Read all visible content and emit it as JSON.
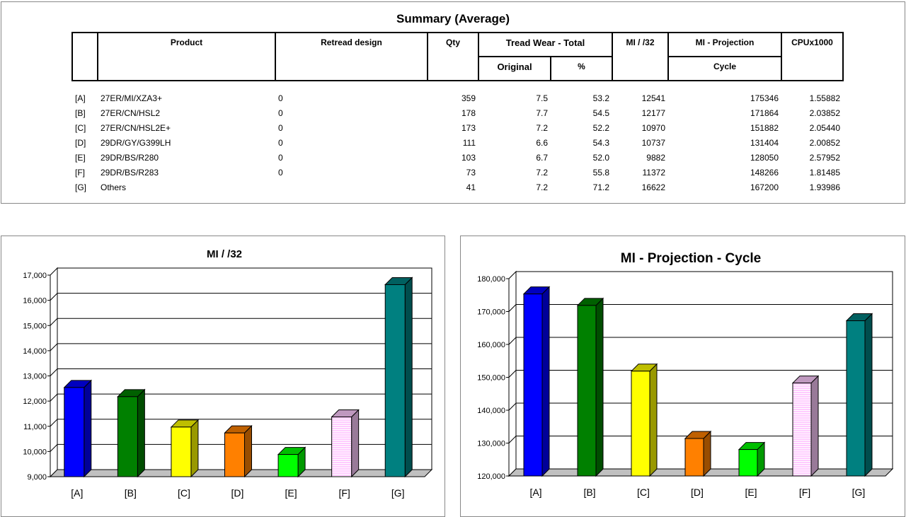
{
  "summary": {
    "title": "Summary (Average)",
    "headers": {
      "product": "Product",
      "retread": "Retread design",
      "qty": "Qty",
      "tread_wear": "Tread Wear - Total",
      "original": "Original",
      "percent": "%",
      "mi32": "MI / /32",
      "mi_projection": "MI - Projection",
      "cycle": "Cycle",
      "cpu": "CPUx1000"
    },
    "rows": [
      {
        "id": "[A]",
        "product": "27ER/MI/XZA3+",
        "retread": "0",
        "qty": "359",
        "original": "7.5",
        "percent": "53.2",
        "mi32": "12541",
        "projection": "175346",
        "cpu": "1.55882"
      },
      {
        "id": "[B]",
        "product": "27ER/CN/HSL2",
        "retread": "0",
        "qty": "178",
        "original": "7.7",
        "percent": "54.5",
        "mi32": "12177",
        "projection": "171864",
        "cpu": "2.03852"
      },
      {
        "id": "[C]",
        "product": "27ER/CN/HSL2E+",
        "retread": "0",
        "qty": "173",
        "original": "7.2",
        "percent": "52.2",
        "mi32": "10970",
        "projection": "151882",
        "cpu": "2.05440"
      },
      {
        "id": "[D]",
        "product": "29DR/GY/G399LH",
        "retread": "0",
        "qty": "111",
        "original": "6.6",
        "percent": "54.3",
        "mi32": "10737",
        "projection": "131404",
        "cpu": "2.00852"
      },
      {
        "id": "[E]",
        "product": "29DR/BS/R280",
        "retread": "0",
        "qty": "103",
        "original": "6.7",
        "percent": "52.0",
        "mi32": "9882",
        "projection": "128050",
        "cpu": "2.57952"
      },
      {
        "id": "[F]",
        "product": "29DR/BS/R283",
        "retread": "0",
        "qty": "73",
        "original": "7.2",
        "percent": "55.8",
        "mi32": "11372",
        "projection": "148266",
        "cpu": "1.81485"
      },
      {
        "id": "[G]",
        "product": "Others",
        "retread": "",
        "qty": "41",
        "original": "7.2",
        "percent": "71.2",
        "mi32": "16622",
        "projection": "167200",
        "cpu": "1.93986"
      }
    ]
  },
  "chart_data": [
    {
      "type": "bar",
      "title": "MI / /32",
      "three_d": true,
      "grid": true,
      "legend": "none",
      "categories": [
        "[A]",
        "[B]",
        "[C]",
        "[D]",
        "[E]",
        "[F]",
        "[G]"
      ],
      "values": [
        12541,
        12177,
        10970,
        10737,
        9882,
        11372,
        16622
      ],
      "ylim": [
        9000,
        17000
      ],
      "yticks": [
        "9,000",
        "10,000",
        "11,000",
        "12,000",
        "13,000",
        "14,000",
        "15,000",
        "16,000",
        "17,000"
      ],
      "colors": [
        "#0000ff",
        "#008000",
        "#ffff00",
        "#ff8000",
        "#00ff00",
        "#ffccff",
        "#008080"
      ]
    },
    {
      "type": "bar",
      "title": "MI - Projection - Cycle",
      "three_d": true,
      "grid": true,
      "legend": "none",
      "categories": [
        "[A]",
        "[B]",
        "[C]",
        "[D]",
        "[E]",
        "[F]",
        "[G]"
      ],
      "values": [
        175346,
        171864,
        151882,
        131404,
        128050,
        148266,
        167200
      ],
      "ylim": [
        120000,
        180000
      ],
      "yticks": [
        "120,000",
        "130,000",
        "140,000",
        "150,000",
        "160,000",
        "170,000",
        "180,000"
      ],
      "colors": [
        "#0000ff",
        "#008000",
        "#ffff00",
        "#ff8000",
        "#00ff00",
        "#ffccff",
        "#008080"
      ]
    }
  ]
}
